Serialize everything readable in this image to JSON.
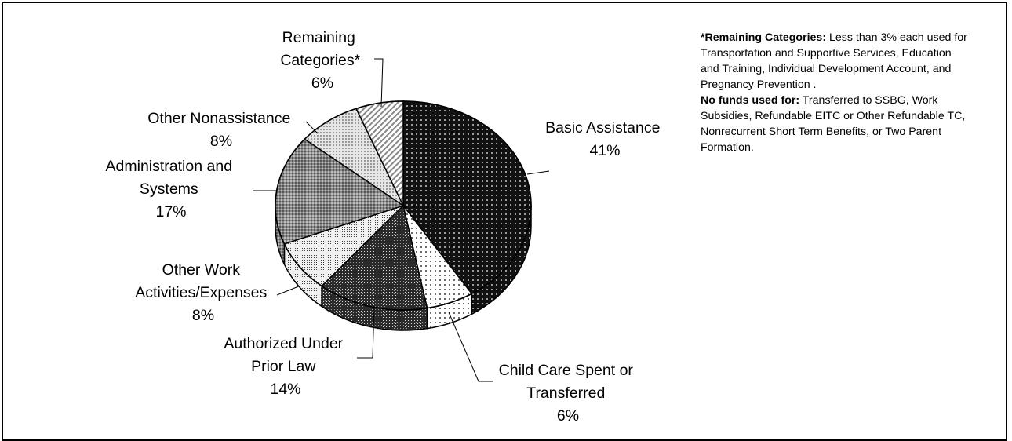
{
  "chart_data": {
    "type": "pie",
    "style": "3d",
    "slices": [
      {
        "label": "Basic Assistance",
        "value": 41,
        "pct_text": "41%",
        "fill": "p-dark-dots"
      },
      {
        "label": "Child Care Spent or Transferred",
        "value": 6,
        "pct_text": "6%",
        "fill": "p-light-dots"
      },
      {
        "label": "Authorized Under Prior Law",
        "value": 14,
        "pct_text": "14%",
        "fill": "p-dark-grid"
      },
      {
        "label": "Other Work Activities/Expenses",
        "value": 8,
        "pct_text": "8%",
        "fill": "p-fine-dots"
      },
      {
        "label": "Administration and Systems",
        "value": 17,
        "pct_text": "17%",
        "fill": "p-med-grid"
      },
      {
        "label": "Other Nonassistance",
        "value": 8,
        "pct_text": "8%",
        "fill": "p-light-grid"
      },
      {
        "label": "Remaining Categories*",
        "value": 6,
        "pct_text": "6%",
        "fill": "p-diag"
      }
    ]
  },
  "labels": {
    "basic": [
      "Basic Assistance",
      "41%"
    ],
    "childcare": [
      "Child Care Spent or",
      "Transferred",
      "6%"
    ],
    "prior_law": [
      "Authorized Under",
      "Prior Law",
      "14%"
    ],
    "other_work": [
      "Other Work",
      "Activities/Expenses",
      "8%"
    ],
    "admin": [
      "Administration and",
      "Systems",
      "17%"
    ],
    "nonassistance": [
      "Other Nonassistance",
      "8%"
    ],
    "remaining": [
      "Remaining",
      "Categories*",
      "6%"
    ]
  },
  "note": {
    "remaining_heading": "*Remaining Categories:",
    "remaining_text": " Less than 3% each used for Transportation and Supportive Services, Education and Training, Individual Development Account, and Pregnancy Prevention .",
    "nofunds_heading": "No funds used for:",
    "nofunds_text": " Transferred to SSBG, Work Subsidies, Refundable EITC or Other Refundable TC, Nonrecurrent Short Term Benefits, or Two Parent Formation."
  }
}
